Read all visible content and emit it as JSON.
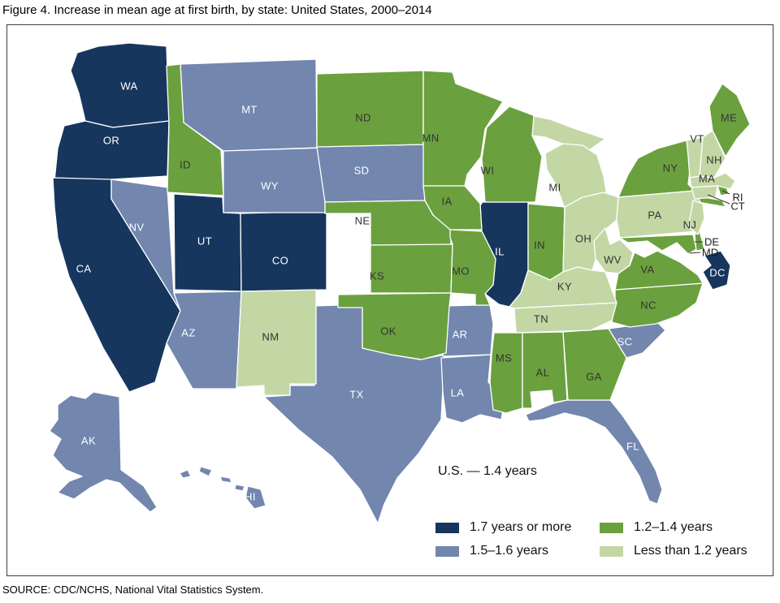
{
  "title": "Figure 4. Increase in mean age at first birth, by state: United States, 2000–2014",
  "source": "SOURCE: CDC/NCHS, National Vital Statistics System.",
  "map_note": "U.S. — 1.4 years",
  "legend": [
    {
      "key": "cat1",
      "label": "1.7 years or more",
      "color": "#16365e"
    },
    {
      "key": "cat2",
      "label": "1.5–1.6 years",
      "color": "#7286ae"
    },
    {
      "key": "cat3",
      "label": "1.2–1.4 years",
      "color": "#6ba03e"
    },
    {
      "key": "cat4",
      "label": "Less than 1.2 years",
      "color": "#c3d7a5"
    }
  ],
  "label_colors": {
    "on_dark": "#ffffff",
    "on_light": "#333333",
    "outside": "#1a1a1a"
  },
  "chart_data": {
    "type": "choropleth",
    "region": "United States",
    "metric": "Increase in mean age at first birth (years), 2000–2014",
    "us_value": "1.4 years",
    "category_labels": {
      "cat1": "1.7 years or more",
      "cat2": "1.5–1.6 years",
      "cat3": "1.2–1.4 years",
      "cat4": "Less than 1.2 years"
    },
    "states": {
      "WA": "cat1",
      "OR": "cat1",
      "CA": "cat1",
      "UT": "cat1",
      "CO": "cat1",
      "IL": "cat1",
      "DC": "cat1",
      "MT": "cat2",
      "WY": "cat2",
      "NV": "cat2",
      "AZ": "cat2",
      "SD": "cat2",
      "TX": "cat2",
      "AR": "cat2",
      "LA": "cat2",
      "FL": "cat2",
      "SC": "cat2",
      "AK": "cat2",
      "HI": "cat2",
      "ID": "cat3",
      "ND": "cat3",
      "MN": "cat3",
      "WI": "cat3",
      "NE": "cat3",
      "IA": "cat3",
      "KS": "cat3",
      "MO": "cat3",
      "OK": "cat3",
      "IN": "cat3",
      "MS": "cat3",
      "AL": "cat3",
      "GA": "cat3",
      "NC": "cat3",
      "VA": "cat3",
      "MD": "cat3",
      "DE": "cat3",
      "NY": "cat3",
      "ME": "cat3",
      "RI": "cat3",
      "NM": "cat4",
      "MI": "cat4",
      "OH": "cat4",
      "PA": "cat4",
      "WV": "cat4",
      "KY": "cat4",
      "TN": "cat4",
      "VT": "cat4",
      "NH": "cat4",
      "MA": "cat4",
      "CT": "cat4",
      "NJ": "cat4"
    }
  }
}
